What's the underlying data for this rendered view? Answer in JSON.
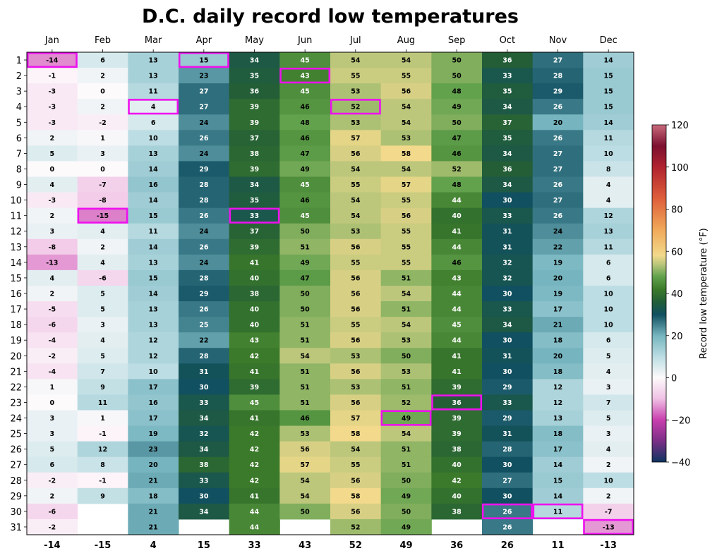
{
  "chart_data": {
    "type": "heatmap",
    "title": "D.C. daily record low temperatures",
    "months": [
      "Jan",
      "Feb",
      "Mar",
      "Apr",
      "May",
      "Jun",
      "Jul",
      "Aug",
      "Sep",
      "Oct",
      "Nov",
      "Dec"
    ],
    "days": [
      "1",
      "2",
      "3",
      "4",
      "5",
      "6",
      "7",
      "8",
      "9",
      "10",
      "11",
      "12",
      "13",
      "14",
      "15",
      "16",
      "17",
      "18",
      "19",
      "20",
      "21",
      "22",
      "23",
      "24",
      "25",
      "26",
      "27",
      "28",
      "29",
      "30",
      "31"
    ],
    "values": [
      [
        -14,
        -1,
        -3,
        -3,
        -3,
        2,
        5,
        0,
        4,
        -3,
        2,
        3,
        -8,
        -13,
        4,
        2,
        -5,
        -6,
        -4,
        -2,
        -4,
        1,
        0,
        3,
        3,
        5,
        6,
        -2,
        2,
        -6,
        -2
      ],
      [
        6,
        2,
        0,
        2,
        -2,
        1,
        3,
        0,
        -7,
        -8,
        -15,
        4,
        2,
        4,
        -6,
        5,
        5,
        3,
        4,
        5,
        7,
        9,
        11,
        1,
        -1,
        12,
        8,
        -1,
        9,
        null,
        null
      ],
      [
        13,
        13,
        11,
        4,
        6,
        10,
        13,
        14,
        16,
        14,
        15,
        11,
        14,
        13,
        15,
        14,
        13,
        13,
        12,
        12,
        10,
        17,
        16,
        17,
        19,
        23,
        20,
        21,
        18,
        21,
        21
      ],
      [
        15,
        23,
        27,
        27,
        24,
        26,
        24,
        29,
        28,
        28,
        26,
        24,
        26,
        24,
        28,
        29,
        26,
        25,
        22,
        28,
        31,
        30,
        33,
        34,
        32,
        34,
        38,
        33,
        30,
        34,
        null
      ],
      [
        34,
        35,
        36,
        39,
        39,
        37,
        38,
        39,
        34,
        35,
        33,
        37,
        39,
        41,
        40,
        38,
        40,
        40,
        43,
        42,
        41,
        39,
        45,
        41,
        42,
        42,
        42,
        42,
        41,
        44,
        44
      ],
      [
        45,
        43,
        45,
        46,
        48,
        46,
        47,
        49,
        45,
        46,
        45,
        50,
        51,
        49,
        47,
        50,
        50,
        51,
        51,
        54,
        51,
        51,
        51,
        46,
        53,
        56,
        57,
        54,
        54,
        50,
        null
      ],
      [
        54,
        55,
        53,
        52,
        53,
        57,
        56,
        54,
        55,
        54,
        54,
        53,
        56,
        55,
        56,
        56,
        56,
        55,
        56,
        53,
        56,
        53,
        56,
        57,
        58,
        54,
        55,
        56,
        58,
        56,
        52
      ],
      [
        54,
        55,
        56,
        54,
        54,
        53,
        58,
        54,
        57,
        55,
        56,
        55,
        55,
        55,
        51,
        54,
        51,
        54,
        53,
        50,
        53,
        51,
        52,
        49,
        54,
        51,
        51,
        50,
        49,
        50,
        49
      ],
      [
        50,
        50,
        48,
        49,
        50,
        47,
        46,
        52,
        48,
        44,
        40,
        41,
        44,
        46,
        43,
        44,
        44,
        45,
        44,
        41,
        41,
        39,
        36,
        39,
        39,
        38,
        40,
        42,
        40,
        38,
        null
      ],
      [
        36,
        33,
        35,
        34,
        37,
        35,
        34,
        36,
        34,
        30,
        33,
        31,
        31,
        32,
        32,
        30,
        33,
        34,
        30,
        31,
        30,
        29,
        33,
        29,
        31,
        28,
        30,
        27,
        30,
        26,
        26
      ],
      [
        27,
        28,
        29,
        26,
        20,
        26,
        27,
        27,
        26,
        27,
        26,
        24,
        22,
        19,
        20,
        19,
        17,
        21,
        18,
        20,
        18,
        12,
        12,
        13,
        18,
        17,
        14,
        15,
        14,
        11,
        null
      ],
      [
        14,
        15,
        15,
        15,
        14,
        11,
        10,
        8,
        4,
        4,
        12,
        13,
        11,
        6,
        6,
        10,
        10,
        10,
        6,
        5,
        4,
        3,
        7,
        5,
        3,
        4,
        2,
        10,
        2,
        -7,
        -13
      ]
    ],
    "monthly_record_lows": [
      -14,
      -15,
      4,
      15,
      33,
      43,
      52,
      49,
      36,
      26,
      11,
      -13
    ],
    "highlighted_record_days": [
      1,
      11,
      4,
      1,
      11,
      2,
      4,
      24,
      23,
      30,
      30,
      31
    ],
    "colorbar": {
      "label": "Record low temperature (°F)",
      "range": [
        -40,
        120
      ],
      "ticks": [
        120,
        100,
        80,
        60,
        40,
        20,
        0,
        -20,
        -40
      ]
    },
    "colormap_stops": [
      {
        "value": -40,
        "color": "#0d3460"
      },
      {
        "value": -30,
        "color": "#7b2f86"
      },
      {
        "value": -20,
        "color": "#c93fae"
      },
      {
        "value": -10,
        "color": "#efc0e4"
      },
      {
        "value": 0,
        "color": "#fdfafb"
      },
      {
        "value": 10,
        "color": "#bcdde3"
      },
      {
        "value": 20,
        "color": "#76b5bf"
      },
      {
        "value": 30,
        "color": "#115060"
      },
      {
        "value": 36,
        "color": "#235e37"
      },
      {
        "value": 42,
        "color": "#3b7a2a"
      },
      {
        "value": 48,
        "color": "#62a24d"
      },
      {
        "value": 54,
        "color": "#bcc77c"
      },
      {
        "value": 58,
        "color": "#f2d98b"
      },
      {
        "value": 70,
        "color": "#f0aa5a"
      },
      {
        "value": 85,
        "color": "#df5f3b"
      },
      {
        "value": 100,
        "color": "#b02330"
      },
      {
        "value": 110,
        "color": "#7c1030"
      },
      {
        "value": 120,
        "color": "#c9697c"
      }
    ],
    "highlight_color": "#ee11ee"
  }
}
